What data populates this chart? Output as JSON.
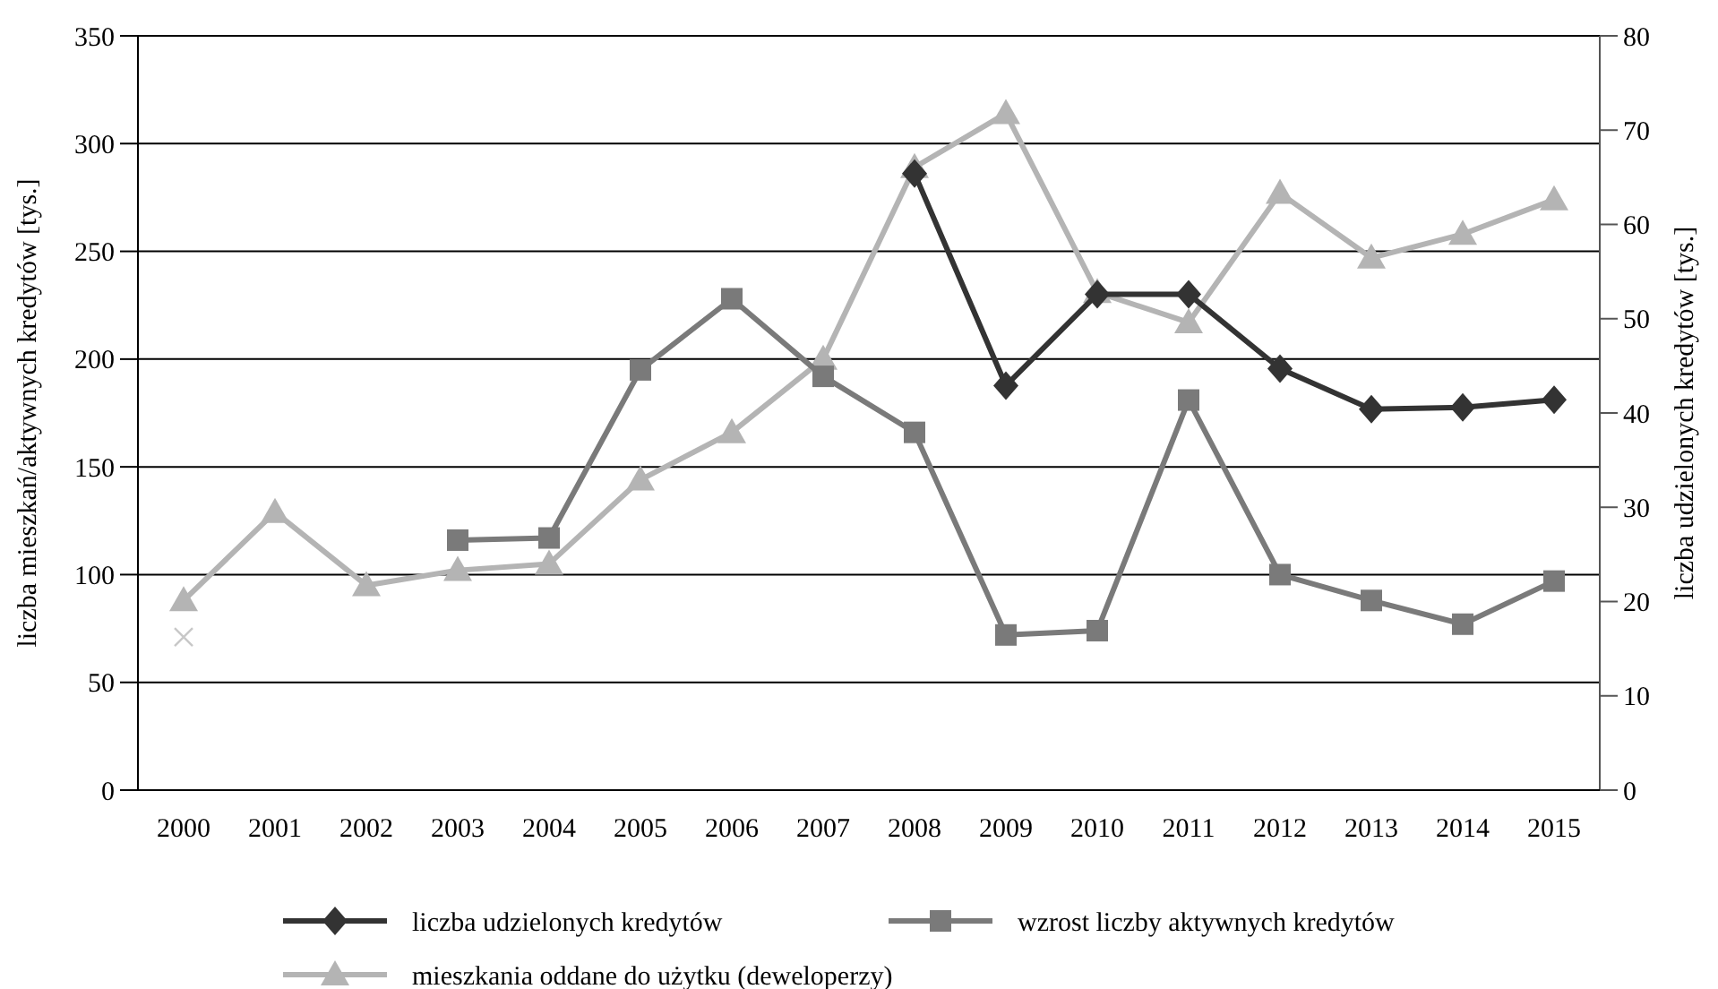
{
  "chart_data": {
    "type": "line",
    "ylabel": "liczba mieszkań/aktywnych kredytów [tys.]",
    "y2label": "liczba udzielonych kredytów [tys.]",
    "categories": [
      "2000",
      "2001",
      "2002",
      "2003",
      "2004",
      "2005",
      "2006",
      "2007",
      "2008",
      "2009",
      "2010",
      "2011",
      "2012",
      "2013",
      "2014",
      "2015"
    ],
    "ylim": [
      0,
      350
    ],
    "yticks": [
      0,
      50,
      100,
      150,
      200,
      250,
      300,
      350
    ],
    "y2lim": [
      0,
      80
    ],
    "y2ticks": [
      0,
      10,
      20,
      30,
      40,
      50,
      60,
      70,
      80
    ],
    "grid": "y",
    "legend": "bottom",
    "series": [
      {
        "name": "liczba udzielonych kredytów",
        "color": "#333333",
        "axis": "y2",
        "marker": "diamond",
        "values": [
          null,
          null,
          null,
          null,
          null,
          null,
          null,
          null,
          65.4,
          42.9,
          52.6,
          52.6,
          44.7,
          40.4,
          40.6,
          41.4
        ]
      },
      {
        "name": "wzrost liczby aktywnych kredytów",
        "color": "#7a7a7a",
        "axis": "y",
        "marker": "square",
        "values": [
          null,
          null,
          null,
          116,
          117,
          195,
          228,
          192,
          166,
          72,
          74,
          181,
          100,
          88,
          77,
          97
        ]
      },
      {
        "name": "mieszkania oddane do użytku (deweloperzy)",
        "color": "#b4b4b4",
        "axis": "y",
        "marker": "triangle",
        "values": [
          88,
          129,
          95,
          102,
          105,
          144,
          166,
          200,
          289,
          314,
          231,
          217,
          277,
          247,
          258,
          274
        ]
      },
      {
        "type": "scatter",
        "color": "#c8c8c8",
        "axis": "y",
        "marker": "cross",
        "values": [
          71,
          null,
          null,
          null,
          null,
          null,
          null,
          null,
          null,
          null,
          null,
          null,
          null,
          null,
          null,
          null
        ]
      }
    ]
  }
}
